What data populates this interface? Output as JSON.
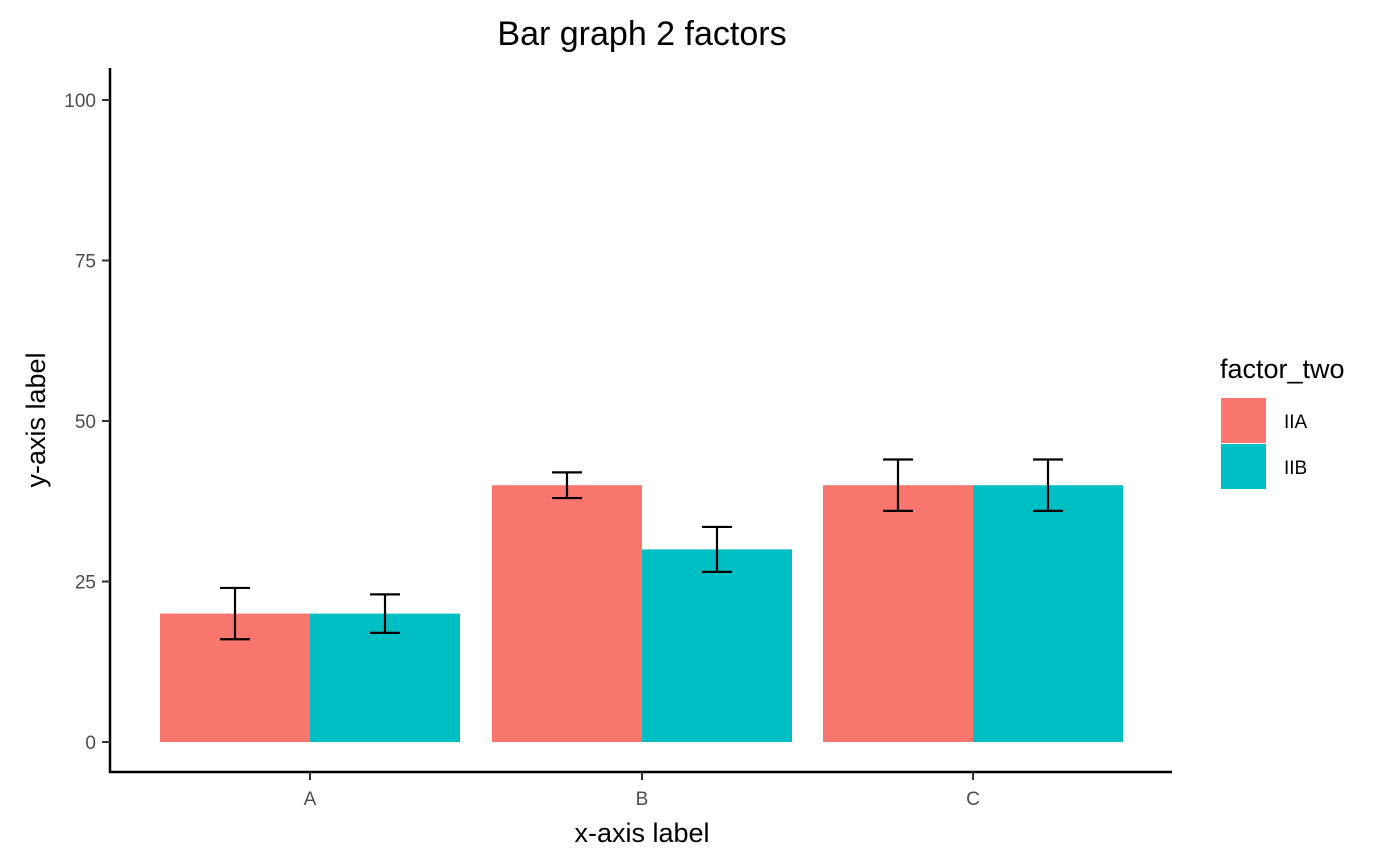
{
  "chart_data": {
    "type": "bar",
    "title": "Bar graph 2 factors",
    "xlabel": "x-axis label",
    "ylabel": "y-axis label",
    "categories": [
      "A",
      "B",
      "C"
    ],
    "ylim": [
      0,
      100
    ],
    "yticks": [
      0,
      25,
      50,
      75,
      100
    ],
    "grid": false,
    "legend": {
      "title": "factor_two",
      "position": "right"
    },
    "series": [
      {
        "name": "IIA",
        "color": "#F8766D",
        "values": [
          20,
          40,
          40
        ],
        "error_low": [
          16,
          38,
          36
        ],
        "error_high": [
          24,
          42,
          44
        ]
      },
      {
        "name": "IIB",
        "color": "#00BFC4",
        "values": [
          20,
          30,
          40
        ],
        "error_low": [
          17,
          26.5,
          36
        ],
        "error_high": [
          23,
          33.5,
          44
        ]
      }
    ]
  }
}
